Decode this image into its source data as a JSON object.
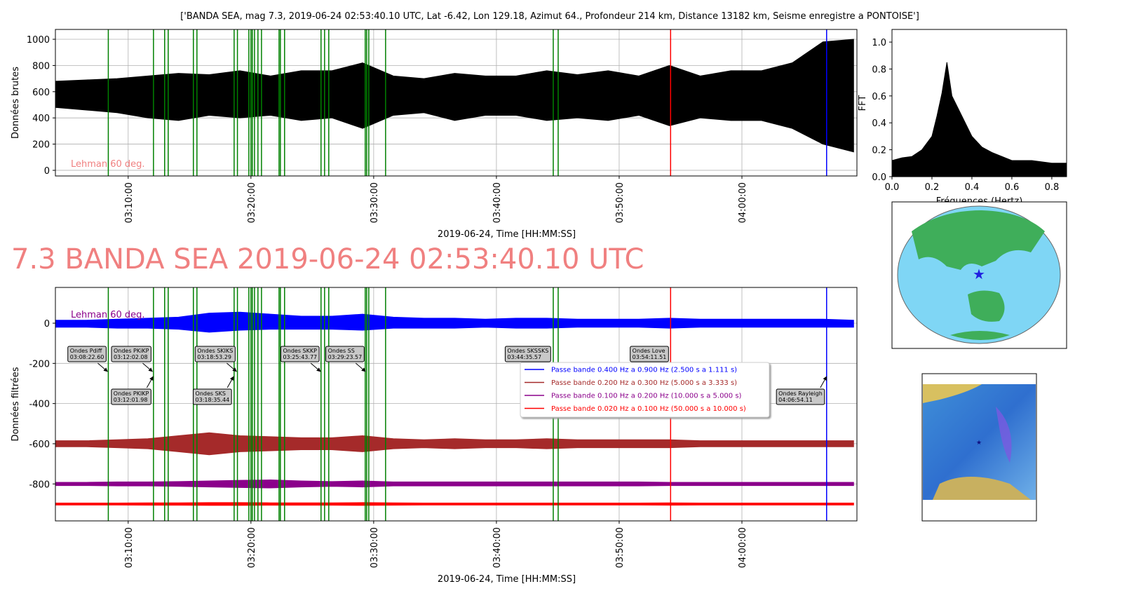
{
  "title": "['BANDA SEA, mag 7.3, 2019-06-24 02:53:40.10 UTC, Lat -6.42, Lon 129.18, Azimut 64., Profondeur 214 km, Distance 13182 km, Seisme enregistre a PONTOISE']",
  "heading": "7.3 BANDA SEA 2019-06-24 02:53:40.10 UTC",
  "chart_data": [
    {
      "type": "band",
      "ylabel": "Données brutes",
      "xlabel": "2019-06-24, Time [HH:MM:SS]",
      "note": "Lehman 60 deg.",
      "note_color": "#f08080",
      "grid": true,
      "xlim": [
        184.07,
        249.37
      ],
      "ylim": [
        -43,
        1075
      ],
      "xticks": [
        {
          "value": 190,
          "label": "03:10:00"
        },
        {
          "value": 200,
          "label": "03:20:00"
        },
        {
          "value": 210,
          "label": "03:30:00"
        },
        {
          "value": 220,
          "label": "03:40:00"
        },
        {
          "value": 230,
          "label": "03:50:00"
        },
        {
          "value": 240,
          "label": "04:00:00"
        }
      ],
      "yticks": [
        0,
        200,
        400,
        600,
        800,
        1000
      ],
      "x": [
        184.1,
        186.6,
        189.1,
        191.6,
        194.1,
        196.6,
        199.1,
        201.6,
        204.1,
        206.6,
        209.1,
        211.6,
        214.1,
        216.6,
        219.1,
        221.6,
        224.1,
        226.6,
        229.1,
        231.6,
        234.1,
        236.6,
        239.1,
        241.6,
        244.1,
        246.6,
        249.1
      ],
      "series": [
        {
          "color": "#000000",
          "upper": [
            680,
            690,
            700,
            720,
            740,
            730,
            760,
            720,
            760,
            760,
            820,
            720,
            700,
            740,
            720,
            720,
            760,
            730,
            760,
            720,
            800,
            720,
            760,
            760,
            820,
            980,
            1000
          ],
          "lower": [
            480,
            460,
            440,
            400,
            380,
            420,
            400,
            420,
            380,
            400,
            320,
            420,
            440,
            380,
            420,
            420,
            380,
            400,
            380,
            420,
            340,
            400,
            380,
            380,
            320,
            200,
            140
          ]
        }
      ],
      "vlines": [
        {
          "color": "#008000",
          "x": [
            188.38,
            192.06,
            192.97,
            193.26,
            195.31,
            195.6,
            198.63,
            198.9,
            199.83,
            200.0,
            200.11,
            200.29,
            200.57,
            200.86,
            202.29,
            202.4,
            202.74,
            205.71,
            206.0,
            206.34,
            209.31,
            209.43,
            209.6,
            210.97,
            224.63,
            225.03
          ]
        },
        {
          "color": "#ff0000",
          "x": [
            234.19
          ]
        },
        {
          "color": "#0000ff",
          "x": [
            246.9
          ]
        }
      ]
    },
    {
      "type": "band",
      "ylabel": "Données filtrées",
      "xlabel": "2019-06-24, Time [HH:MM:SS]",
      "note": "Lehman 60 deg.",
      "note_color": "#8b008b",
      "grid": true,
      "legend": "center right",
      "xlim": [
        184.07,
        249.37
      ],
      "ylim": [
        -984,
        178
      ],
      "xticks": [
        {
          "value": 190,
          "label": "03:10:00"
        },
        {
          "value": 200,
          "label": "03:20:00"
        },
        {
          "value": 210,
          "label": "03:30:00"
        },
        {
          "value": 220,
          "label": "03:40:00"
        },
        {
          "value": 230,
          "label": "03:50:00"
        },
        {
          "value": 240,
          "label": "04:00:00"
        }
      ],
      "yticks": [
        -800,
        -600,
        -400,
        -200,
        0
      ],
      "x": [
        184.1,
        186.6,
        189.1,
        191.6,
        194.1,
        196.6,
        199.1,
        201.6,
        204.1,
        206.6,
        209.1,
        211.6,
        214.1,
        216.6,
        219.1,
        221.6,
        224.1,
        226.6,
        229.1,
        231.6,
        234.1,
        236.6,
        239.1,
        241.6,
        244.1,
        246.6,
        249.1
      ],
      "series": [
        {
          "name": "Passe bande 0.400 Hz a 0.900 Hz (2.500 s a 1.111 s)",
          "color": "#0000ff",
          "upper": [
            15,
            15,
            20,
            25,
            30,
            50,
            55,
            45,
            35,
            35,
            45,
            30,
            25,
            25,
            20,
            25,
            25,
            20,
            20,
            20,
            25,
            20,
            20,
            20,
            20,
            20,
            15
          ],
          "lower": [
            -20,
            -20,
            -25,
            -25,
            -30,
            -45,
            -35,
            -30,
            -30,
            -30,
            -35,
            -25,
            -25,
            -25,
            -20,
            -25,
            -25,
            -20,
            -20,
            -20,
            -25,
            -20,
            -20,
            -20,
            -20,
            -20,
            -20
          ]
        },
        {
          "name": "Passe bande 0.200 Hz a 0.300 Hz (5.000 s a 3.333 s)",
          "color": "#a52a2a",
          "upper": [
            -585,
            -585,
            -580,
            -575,
            -560,
            -545,
            -560,
            -565,
            -570,
            -570,
            -560,
            -575,
            -580,
            -575,
            -580,
            -580,
            -575,
            -580,
            -580,
            -580,
            -580,
            -585,
            -585,
            -585,
            -585,
            -585,
            -585
          ],
          "lower": [
            -615,
            -615,
            -620,
            -625,
            -640,
            -655,
            -640,
            -635,
            -630,
            -630,
            -640,
            -625,
            -620,
            -625,
            -620,
            -620,
            -625,
            -620,
            -620,
            -620,
            -620,
            -615,
            -615,
            -615,
            -615,
            -615,
            -615
          ]
        },
        {
          "name": "Passe bande 0.100 Hz a 0.200 Hz (10.000 s a 5.000 s)",
          "color": "#8b008b",
          "upper": [
            -792,
            -792,
            -790,
            -790,
            -788,
            -785,
            -782,
            -780,
            -785,
            -788,
            -785,
            -790,
            -790,
            -790,
            -790,
            -790,
            -790,
            -790,
            -790,
            -790,
            -792,
            -792,
            -792,
            -792,
            -792,
            -792,
            -792
          ],
          "lower": [
            -808,
            -808,
            -810,
            -810,
            -812,
            -815,
            -818,
            -820,
            -815,
            -812,
            -815,
            -810,
            -810,
            -810,
            -810,
            -810,
            -810,
            -810,
            -810,
            -810,
            -808,
            -808,
            -808,
            -808,
            -808,
            -808,
            -808
          ]
        },
        {
          "name": "Passe bande 0.020 Hz a 0.100 Hz (50.000 s a 10.000 s)",
          "color": "#ff0000",
          "upper": [
            -895,
            -895,
            -895,
            -894,
            -894,
            -893,
            -893,
            -894,
            -894,
            -894,
            -893,
            -894,
            -895,
            -895,
            -895,
            -895,
            -895,
            -895,
            -895,
            -895,
            -894,
            -895,
            -895,
            -895,
            -895,
            -895,
            -895
          ],
          "lower": [
            -905,
            -905,
            -905,
            -906,
            -906,
            -907,
            -907,
            -906,
            -906,
            -906,
            -907,
            -906,
            -905,
            -905,
            -905,
            -905,
            -905,
            -905,
            -905,
            -905,
            -906,
            -905,
            -905,
            -905,
            -905,
            -905,
            -905
          ]
        }
      ],
      "vlines": [
        {
          "color": "#008000",
          "x": [
            188.38,
            192.06,
            192.97,
            193.26,
            195.31,
            195.6,
            198.63,
            198.9,
            199.83,
            200.0,
            200.11,
            200.29,
            200.57,
            200.86,
            202.29,
            202.4,
            202.74,
            205.71,
            206.0,
            206.34,
            209.31,
            209.43,
            209.6,
            210.97,
            224.63,
            225.03
          ]
        },
        {
          "color": "#ff0000",
          "x": [
            234.19
          ]
        },
        {
          "color": "#0000ff",
          "x": [
            246.9
          ]
        }
      ],
      "annotations": [
        {
          "text": [
            "Ondes Pdiff",
            "03:08:22.60"
          ],
          "x": 188.377,
          "row": "upper"
        },
        {
          "text": [
            "Ondes PKiKP",
            "03:12:02.08"
          ],
          "x": 192.035,
          "row": "upper"
        },
        {
          "text": [
            "Ondes SKIKS",
            "03:18:53.29"
          ],
          "x": 198.888,
          "row": "upper"
        },
        {
          "text": [
            "Ondes SKKP",
            "03:25:43.77"
          ],
          "x": 205.73,
          "row": "upper"
        },
        {
          "text": [
            "Ondes SS",
            "03:29:23.57"
          ],
          "x": 209.393,
          "row": "upper"
        },
        {
          "text": [
            "Ondes SKSSKS",
            "03:44:35.57"
          ],
          "x": 224.593,
          "row": "upper"
        },
        {
          "text": [
            "Ondes Love",
            "03:54:11.51"
          ],
          "x": 234.192,
          "row": "upper"
        },
        {
          "text": [
            "Ondes PKIKP",
            "03:12:01.98"
          ],
          "x": 192.033,
          "row": "lower"
        },
        {
          "text": [
            "Ondes SKS",
            "03:18:35.44"
          ],
          "x": 198.591,
          "row": "lower"
        },
        {
          "text": [
            "Ondes Rayleigh",
            "04:06:54.11"
          ],
          "x": 246.902,
          "row": "lower"
        }
      ]
    },
    {
      "type": "area",
      "xlabel": "Fréquences (Hertz)",
      "ylabel": "FFT",
      "color": "#000000",
      "xlim": [
        0,
        0.874
      ],
      "ylim": [
        0,
        1.094
      ],
      "xticks": [
        {
          "value": 0,
          "label": "0.0"
        },
        {
          "value": 0.2,
          "label": "0.2"
        },
        {
          "value": 0.4,
          "label": "0.4"
        },
        {
          "value": 0.6,
          "label": "0.6"
        },
        {
          "value": 0.8,
          "label": "0.8"
        }
      ],
      "yticks": [
        {
          "value": 0,
          "label": "0.0"
        },
        {
          "value": 0.2,
          "label": "0.2"
        },
        {
          "value": 0.4,
          "label": "0.4"
        },
        {
          "value": 0.6,
          "label": "0.6"
        },
        {
          "value": 0.8,
          "label": "0.8"
        },
        {
          "value": 1.0,
          "label": "1.0"
        }
      ],
      "x": [
        0,
        0.05,
        0.1,
        0.15,
        0.2,
        0.225,
        0.25,
        0.275,
        0.3,
        0.35,
        0.4,
        0.45,
        0.5,
        0.55,
        0.6,
        0.7,
        0.8,
        0.874
      ],
      "values": [
        0.12,
        0.14,
        0.15,
        0.2,
        0.3,
        0.45,
        0.62,
        0.85,
        0.6,
        0.45,
        0.3,
        0.22,
        0.18,
        0.15,
        0.12,
        0.12,
        0.1,
        0.1
      ]
    }
  ]
}
